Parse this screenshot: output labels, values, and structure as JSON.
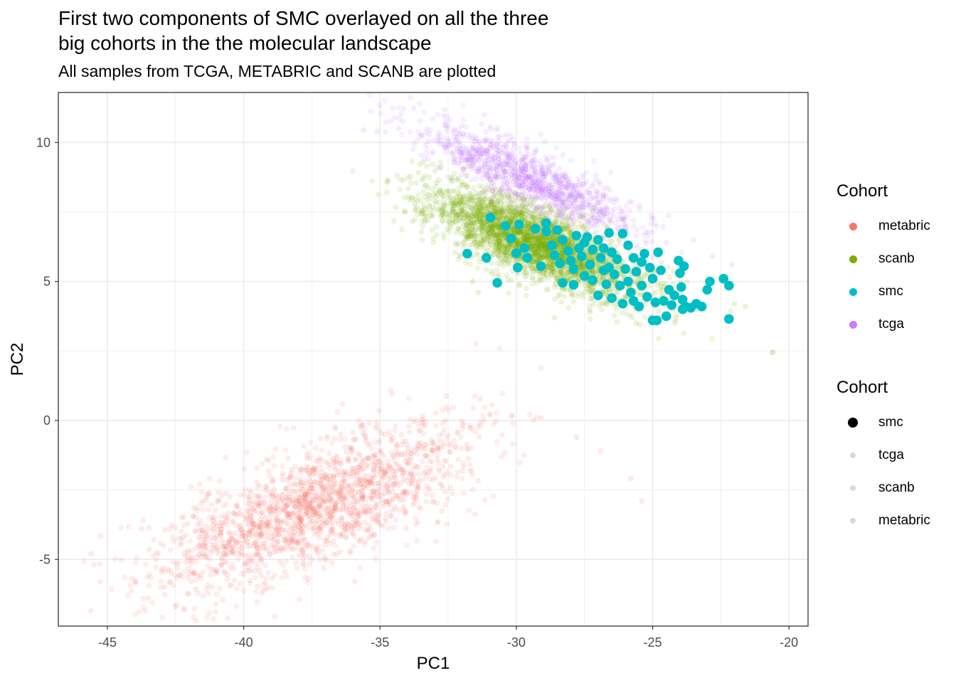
{
  "chart_data": {
    "type": "scatter",
    "title_line1": "First two components of SMC overlayed on all the three",
    "title_line2": "big cohorts in the the molecular landscape",
    "subtitle": "All samples from TCGA, METABRIC and SCANB are plotted",
    "xlabel": "PC1",
    "ylabel": "PC2",
    "xlim": [
      -46.8,
      -19.3
    ],
    "ylim": [
      -7.4,
      11.8
    ],
    "x_ticks": [
      -45,
      -40,
      -35,
      -30,
      -25,
      -20
    ],
    "y_ticks": [
      -5,
      0,
      5,
      10
    ],
    "grid": true,
    "legend_position": "right",
    "legend_color": {
      "title": "Cohort",
      "items": [
        {
          "label": "metabric",
          "color": "#F8766D"
        },
        {
          "label": "scanb",
          "color": "#7CAE00"
        },
        {
          "label": "smc",
          "color": "#00BFC4"
        },
        {
          "label": "tcga",
          "color": "#C77CFF"
        }
      ]
    },
    "legend_size": {
      "title": "Cohort",
      "items": [
        {
          "label": "smc",
          "style": "large-opaque"
        },
        {
          "label": "tcga",
          "style": "small-faded"
        },
        {
          "label": "scanb",
          "style": "small-faded"
        },
        {
          "label": "metabric",
          "style": "small-faded"
        }
      ]
    },
    "series": [
      {
        "name": "metabric",
        "color": "#F8766D",
        "distribution": {
          "center": [
            -37.5,
            -3.1
          ],
          "spread": [
            2.9,
            1.05
          ],
          "slope": 0.37,
          "count": 1900,
          "seed": 11
        },
        "extra_points": [
          [
            -45.6,
            -4.8
          ],
          [
            -45.5,
            -5.2
          ],
          [
            -43.5,
            -6.4
          ],
          [
            -42.5,
            -6.7
          ],
          [
            -32.6,
            0.0
          ],
          [
            -29.1,
            0.1
          ],
          [
            -27.8,
            -0.6
          ],
          [
            -26.9,
            -1.1
          ],
          [
            -25.8,
            -2.1
          ],
          [
            -25.4,
            -2.9
          ],
          [
            -20.6,
            2.45
          ]
        ]
      },
      {
        "name": "scanb",
        "color": "#7CAE00",
        "distribution": {
          "center": [
            -29.3,
            6.4
          ],
          "spread": [
            1.9,
            0.62
          ],
          "slope": -0.38,
          "count": 3200,
          "seed": 23
        },
        "extra_points": [
          [
            -34.1,
            7.5
          ],
          [
            -33.7,
            7.6
          ],
          [
            -32.8,
            8.3
          ],
          [
            -31.6,
            5.0
          ],
          [
            -31.4,
            4.6
          ],
          [
            -28.6,
            3.7
          ],
          [
            -27.3,
            3.9
          ],
          [
            -25.6,
            3.5
          ],
          [
            -22.0,
            4.2
          ],
          [
            -21.6,
            4.1
          ],
          [
            -20.6,
            2.45
          ]
        ]
      },
      {
        "name": "tcga",
        "color": "#C77CFF",
        "distribution": {
          "center": [
            -29.6,
            8.75
          ],
          "spread": [
            2.0,
            0.52
          ],
          "slope": -0.42,
          "count": 1100,
          "seed": 37
        },
        "extra_points": [
          [
            -35.6,
            10.45
          ],
          [
            -35.1,
            10.4
          ],
          [
            -34.3,
            10.5
          ],
          [
            -33.2,
            10.3
          ],
          [
            -32.6,
            10.75
          ],
          [
            -32.0,
            10.6
          ],
          [
            -24.5,
            6.4
          ],
          [
            -23.5,
            6.5
          ],
          [
            -22.8,
            5.9
          ],
          [
            -22.1,
            5.6
          ]
        ]
      },
      {
        "name": "smc",
        "color": "#00BFC4",
        "points": [
          [
            -31.8,
            6.0
          ],
          [
            -31.1,
            5.85
          ],
          [
            -30.95,
            7.3
          ],
          [
            -30.7,
            4.95
          ],
          [
            -30.4,
            7.0
          ],
          [
            -30.2,
            6.55
          ],
          [
            -30.0,
            6.02
          ],
          [
            -29.95,
            5.5
          ],
          [
            -29.9,
            7.05
          ],
          [
            -29.7,
            6.2
          ],
          [
            -29.6,
            5.85
          ],
          [
            -29.3,
            6.9
          ],
          [
            -29.1,
            5.55
          ],
          [
            -28.9,
            7.1
          ],
          [
            -28.9,
            6.8
          ],
          [
            -28.7,
            6.3
          ],
          [
            -28.6,
            5.95
          ],
          [
            -28.5,
            6.85
          ],
          [
            -28.4,
            5.65
          ],
          [
            -28.3,
            6.5
          ],
          [
            -28.3,
            4.95
          ],
          [
            -28.1,
            6.1
          ],
          [
            -28.0,
            5.75
          ],
          [
            -27.9,
            4.88
          ],
          [
            -27.9,
            5.45
          ],
          [
            -27.8,
            6.65
          ],
          [
            -27.7,
            6.2
          ],
          [
            -27.6,
            5.9
          ],
          [
            -27.5,
            6.4
          ],
          [
            -27.5,
            5.2
          ],
          [
            -27.4,
            6.6
          ],
          [
            -27.3,
            5.6
          ],
          [
            -27.2,
            6.15
          ],
          [
            -27.2,
            5.05
          ],
          [
            -27.0,
            6.5
          ],
          [
            -27.0,
            4.5
          ],
          [
            -26.9,
            5.85
          ],
          [
            -26.8,
            6.2
          ],
          [
            -26.8,
            5.4
          ],
          [
            -26.7,
            4.9
          ],
          [
            -26.6,
            6.75
          ],
          [
            -26.6,
            5.5
          ],
          [
            -26.5,
            6.05
          ],
          [
            -26.5,
            4.4
          ],
          [
            -26.4,
            5.25
          ],
          [
            -26.3,
            5.8
          ],
          [
            -26.2,
            4.85
          ],
          [
            -26.1,
            6.72
          ],
          [
            -26.1,
            4.2
          ],
          [
            -26.0,
            5.45
          ],
          [
            -25.9,
            6.3
          ],
          [
            -25.9,
            5.0
          ],
          [
            -25.8,
            4.6
          ],
          [
            -25.7,
            5.85
          ],
          [
            -25.7,
            4.3
          ],
          [
            -25.6,
            5.35
          ],
          [
            -25.5,
            4.1
          ],
          [
            -25.4,
            5.7
          ],
          [
            -25.4,
            4.85
          ],
          [
            -25.3,
            6.0
          ],
          [
            -25.2,
            4.45
          ],
          [
            -25.1,
            5.5
          ],
          [
            -25.0,
            3.6
          ],
          [
            -25.0,
            5.1
          ],
          [
            -24.9,
            4.25
          ],
          [
            -24.85,
            3.6
          ],
          [
            -24.8,
            6.05
          ],
          [
            -24.7,
            5.4
          ],
          [
            -24.6,
            4.3
          ],
          [
            -24.5,
            3.75
          ],
          [
            -24.4,
            4.7
          ],
          [
            -24.3,
            4.15
          ],
          [
            -24.2,
            4.5
          ],
          [
            -24.05,
            5.75
          ],
          [
            -24.0,
            5.3
          ],
          [
            -23.95,
            4.8
          ],
          [
            -23.9,
            4.0
          ],
          [
            -23.9,
            4.35
          ],
          [
            -23.85,
            5.55
          ],
          [
            -23.8,
            4.1
          ],
          [
            -23.6,
            4.05
          ],
          [
            -23.4,
            4.2
          ],
          [
            -23.2,
            4.1
          ],
          [
            -23.0,
            4.7
          ],
          [
            -22.9,
            5.0
          ],
          [
            -22.4,
            5.1
          ],
          [
            -22.2,
            4.85
          ],
          [
            -22.2,
            3.65
          ]
        ]
      }
    ]
  }
}
